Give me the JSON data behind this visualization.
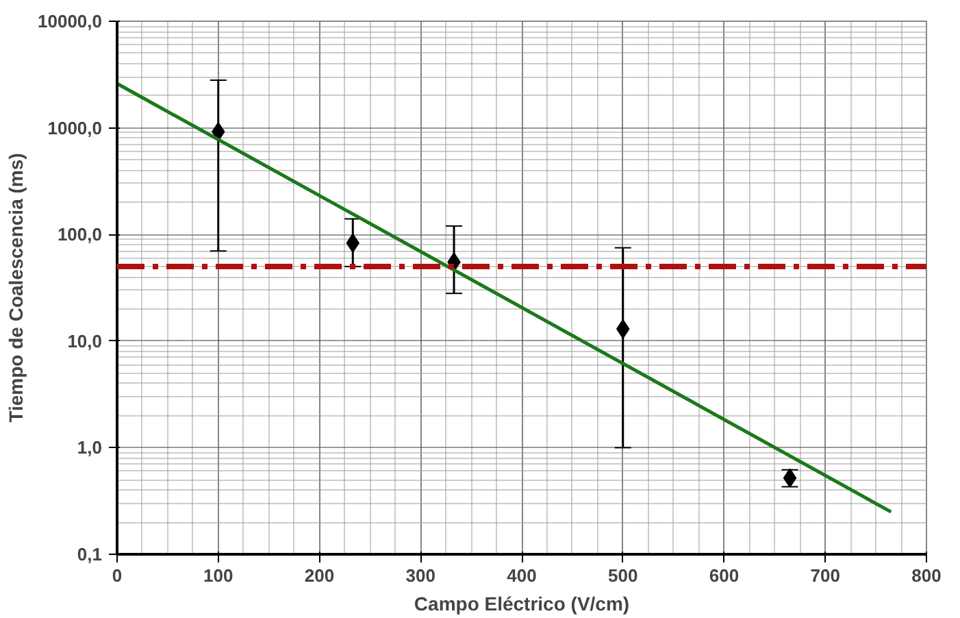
{
  "chart_data": {
    "type": "scatter",
    "xlabel": "Campo Eléctrico (V/cm)",
    "ylabel": "Tiempo de Coalescencia (ms)",
    "log": "y",
    "grid": true,
    "marker": "diamond",
    "xlim": [
      0,
      800
    ],
    "xticks": [
      0,
      100,
      200,
      300,
      400,
      500,
      600,
      700,
      800
    ],
    "ylim": [
      0.1,
      10000
    ],
    "yticks": [
      {
        "value": 0.1,
        "label": "0,1"
      },
      {
        "value": 1,
        "label": "1,0"
      },
      {
        "value": 10,
        "label": "10,0"
      },
      {
        "value": 100,
        "label": "100,0"
      },
      {
        "value": 1000,
        "label": "1000,0"
      },
      {
        "value": 10000,
        "label": "10000,0"
      }
    ],
    "series": [
      {
        "color": "#000000",
        "x": [
          100,
          233,
          333,
          500,
          665
        ],
        "values": [
          920,
          83,
          55,
          13,
          0.52
        ],
        "errors": [
          [
            70,
            2800
          ],
          [
            50,
            140
          ],
          [
            28,
            120
          ],
          [
            1.0,
            75
          ],
          [
            0.43,
            0.62
          ]
        ]
      },
      {
        "type": "line",
        "color": "#1a7a1a",
        "marker": "none",
        "x": [
          0,
          765
        ],
        "values": [
          2600,
          0.25
        ]
      }
    ],
    "ref_lines": [
      {
        "axis": "y",
        "value": 50,
        "color": "#b01010",
        "line_style": "dashdot"
      }
    ]
  }
}
